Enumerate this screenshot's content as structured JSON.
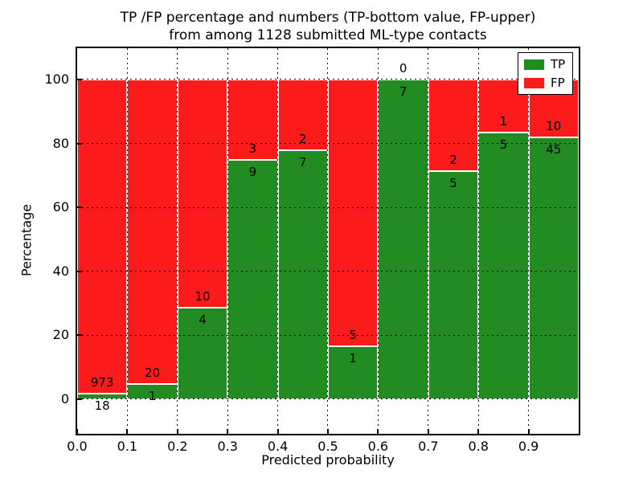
{
  "chart_data": {
    "type": "bar",
    "stacked": true,
    "title_line1": "TP /FP percentage and numbers (TP-bottom value, FP-upper)",
    "title_line2": "from among 1128 submitted ML-type contacts",
    "xlabel": "Predicted probability",
    "ylabel": "Percentage",
    "total_contacts": 1128,
    "x_tick_labels": [
      "0.0",
      "0.1",
      "0.2",
      "0.3",
      "0.4",
      "0.5",
      "0.6",
      "0.7",
      "0.8",
      "0.9"
    ],
    "y_tick_values": [
      0,
      20,
      40,
      60,
      80,
      100
    ],
    "xlim": [
      0.0,
      1.0
    ],
    "ylim": [
      -10.8,
      109.8
    ],
    "grid_style": "dotted",
    "grid_on": true,
    "legend": {
      "position": "upper right",
      "entries": [
        {
          "label": "TP",
          "color": "#228b22"
        },
        {
          "label": "FP",
          "color": "#fb1b1b"
        }
      ]
    },
    "colors": {
      "tp": "#228b22",
      "fp": "#fb1b1b"
    },
    "bins": [
      {
        "range": [
          0.0,
          0.1
        ],
        "tp": 18,
        "fp": 973,
        "tp_pct": 1.82
      },
      {
        "range": [
          0.1,
          0.2
        ],
        "tp": 1,
        "fp": 20,
        "tp_pct": 4.76
      },
      {
        "range": [
          0.2,
          0.3
        ],
        "tp": 4,
        "fp": 10,
        "tp_pct": 28.57
      },
      {
        "range": [
          0.3,
          0.4
        ],
        "tp": 9,
        "fp": 3,
        "tp_pct": 75.0
      },
      {
        "range": [
          0.4,
          0.5
        ],
        "tp": 7,
        "fp": 2,
        "tp_pct": 77.78
      },
      {
        "range": [
          0.5,
          0.6
        ],
        "tp": 1,
        "fp": 5,
        "tp_pct": 16.67
      },
      {
        "range": [
          0.6,
          0.7
        ],
        "tp": 7,
        "fp": 0,
        "tp_pct": 100.0
      },
      {
        "range": [
          0.7,
          0.8
        ],
        "tp": 5,
        "fp": 2,
        "tp_pct": 71.43
      },
      {
        "range": [
          0.8,
          0.9
        ],
        "tp": 5,
        "fp": 1,
        "tp_pct": 83.33
      },
      {
        "range": [
          0.9,
          1.0
        ],
        "tp": 45,
        "fp": 10,
        "tp_pct": 81.82
      }
    ]
  }
}
